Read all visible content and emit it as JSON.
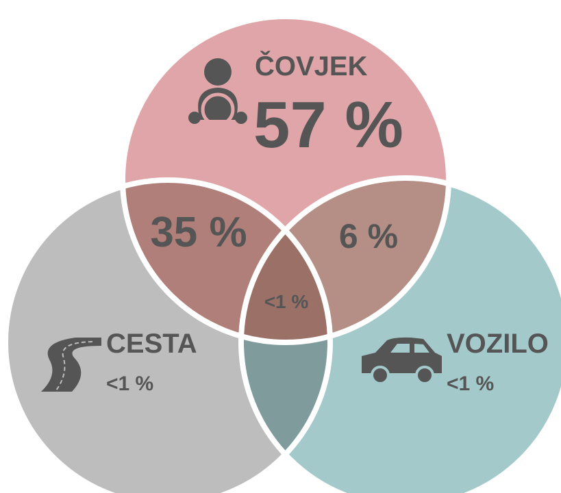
{
  "sets": [
    {
      "label": "ČOVJEK",
      "value": "57 %"
    },
    {
      "label": "CESTA",
      "value": "<1 %"
    },
    {
      "label": "VOZILO",
      "value": "<1 %"
    }
  ],
  "intersections": [
    {
      "value": "35 %"
    },
    {
      "value": "6 %"
    },
    {
      "value": "<1 %"
    }
  ]
}
